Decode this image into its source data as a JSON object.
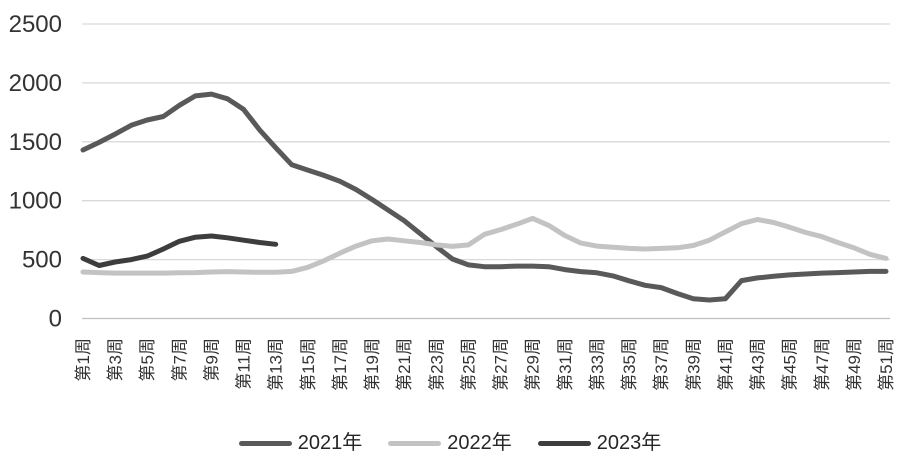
{
  "chart_data": {
    "type": "line",
    "title": "",
    "x_axis": {
      "unit": "week",
      "weeks_range": [
        1,
        51
      ],
      "tick_step": 2,
      "tick_labels": [
        "第1周",
        "第3周",
        "第5周",
        "第7周",
        "第9周",
        "第11周",
        "第13周",
        "第15周",
        "第17周",
        "第19周",
        "第21周",
        "第23周",
        "第25周",
        "第27周",
        "第29周",
        "第31周",
        "第33周",
        "第35周",
        "第37周",
        "第39周",
        "第41周",
        "第43周",
        "第45周",
        "第47周",
        "第49周",
        "第51周"
      ]
    },
    "y_axis": {
      "ylim": [
        0,
        2500
      ],
      "ticks": [
        0,
        500,
        1000,
        1500,
        2000,
        2500
      ],
      "tick_labels": [
        "0",
        "500",
        "1000",
        "1500",
        "2000",
        "2500"
      ],
      "gridlines": true
    },
    "legend_position": "bottom",
    "series": [
      {
        "name": "2021年",
        "color": "#595959",
        "start_week": 1,
        "values": [
          1430,
          1495,
          1565,
          1640,
          1685,
          1715,
          1810,
          1890,
          1905,
          1865,
          1775,
          1600,
          1450,
          1305,
          1260,
          1215,
          1165,
          1095,
          1010,
          920,
          830,
          720,
          610,
          505,
          455,
          440,
          440,
          445,
          445,
          440,
          415,
          398,
          388,
          362,
          320,
          282,
          262,
          212,
          168,
          157,
          168,
          322,
          345,
          358,
          370,
          378,
          385,
          390,
          395,
          400,
          400
        ]
      },
      {
        "name": "2022年",
        "color": "#c3c3c3",
        "start_week": 1,
        "values": [
          395,
          390,
          385,
          385,
          385,
          385,
          388,
          390,
          395,
          398,
          395,
          392,
          392,
          400,
          435,
          490,
          555,
          615,
          660,
          675,
          660,
          645,
          625,
          612,
          625,
          715,
          755,
          800,
          850,
          790,
          705,
          640,
          615,
          605,
          595,
          590,
          595,
          600,
          620,
          665,
          735,
          805,
          840,
          815,
          775,
          730,
          695,
          645,
          600,
          545,
          510
        ]
      },
      {
        "name": "2023年",
        "color": "#3d3d3d",
        "start_week": 1,
        "values": [
          510,
          450,
          480,
          500,
          530,
          590,
          655,
          690,
          700,
          685,
          665,
          645,
          630
        ]
      }
    ]
  },
  "style": {
    "gridline_color": "#d9d9d9",
    "axis_line_color": "#bfbfbf",
    "tick_text_color": "#333333",
    "line_width": 5
  }
}
